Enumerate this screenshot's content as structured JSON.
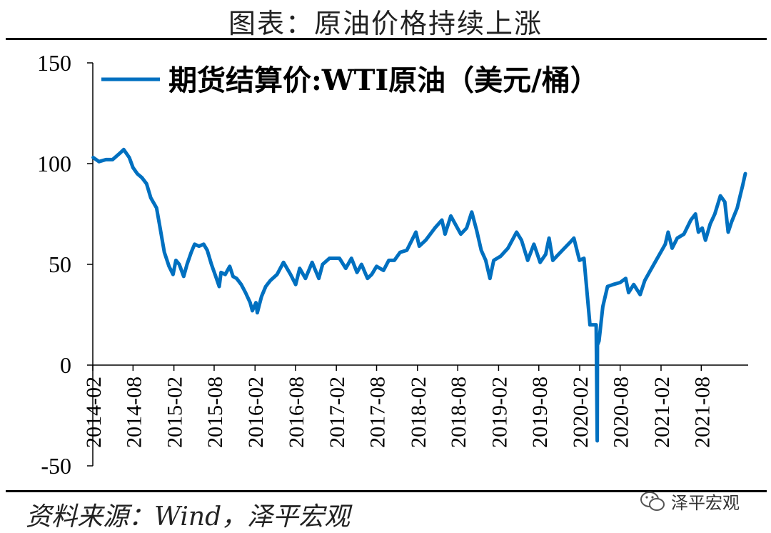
{
  "title": "图表：原油价格持续上涨",
  "source": "资料来源：Wind，泽平宏观",
  "watermark": "泽平宏观",
  "colors": {
    "line": "#0070C0",
    "axis": "#000000"
  },
  "icons": {
    "watermark": "wechat-icon"
  },
  "chart_data": {
    "type": "line",
    "title": "",
    "xlabel": "",
    "ylabel": "",
    "ylim": [
      -50,
      150
    ],
    "yticks": [
      -50,
      0,
      50,
      100,
      150
    ],
    "xticks": [
      "2014-02",
      "2014-08",
      "2015-02",
      "2015-08",
      "2016-02",
      "2016-08",
      "2017-02",
      "2017-08",
      "2018-02",
      "2018-08",
      "2019-02",
      "2019-08",
      "2020-02",
      "2020-08",
      "2021-02",
      "2021-08"
    ],
    "xrange": [
      "2014-02",
      "2022-02"
    ],
    "grid": false,
    "legend": {
      "position": "top-left"
    },
    "series": [
      {
        "name": "期货结算价:WTI原油（美元/桶）",
        "color": "#0070C0",
        "points": [
          [
            "2014-02-03",
            103
          ],
          [
            "2014-03-01",
            101
          ],
          [
            "2014-04-01",
            102
          ],
          [
            "2014-05-01",
            102
          ],
          [
            "2014-06-01",
            105
          ],
          [
            "2014-06-20",
            107
          ],
          [
            "2014-07-15",
            103
          ],
          [
            "2014-08-01",
            98
          ],
          [
            "2014-08-20",
            95
          ],
          [
            "2014-09-10",
            93
          ],
          [
            "2014-10-01",
            90
          ],
          [
            "2014-10-20",
            83
          ],
          [
            "2014-11-15",
            78
          ],
          [
            "2014-12-01",
            68
          ],
          [
            "2014-12-20",
            56
          ],
          [
            "2015-01-10",
            49
          ],
          [
            "2015-01-28",
            45
          ],
          [
            "2015-02-10",
            52
          ],
          [
            "2015-02-25",
            50
          ],
          [
            "2015-03-17",
            44
          ],
          [
            "2015-04-01",
            50
          ],
          [
            "2015-04-20",
            56
          ],
          [
            "2015-05-05",
            60
          ],
          [
            "2015-05-25",
            59
          ],
          [
            "2015-06-15",
            60
          ],
          [
            "2015-07-01",
            57
          ],
          [
            "2015-07-20",
            50
          ],
          [
            "2015-08-05",
            45
          ],
          [
            "2015-08-24",
            39
          ],
          [
            "2015-09-01",
            46
          ],
          [
            "2015-09-20",
            45
          ],
          [
            "2015-10-10",
            49
          ],
          [
            "2015-10-25",
            44
          ],
          [
            "2015-11-10",
            43
          ],
          [
            "2015-12-01",
            40
          ],
          [
            "2015-12-20",
            36
          ],
          [
            "2016-01-10",
            31
          ],
          [
            "2016-01-20",
            27
          ],
          [
            "2016-02-05",
            31
          ],
          [
            "2016-02-11",
            26
          ],
          [
            "2016-03-01",
            34
          ],
          [
            "2016-03-20",
            39
          ],
          [
            "2016-04-10",
            42
          ],
          [
            "2016-05-10",
            45
          ],
          [
            "2016-06-08",
            51
          ],
          [
            "2016-07-10",
            45
          ],
          [
            "2016-08-02",
            40
          ],
          [
            "2016-08-20",
            48
          ],
          [
            "2016-09-15",
            43
          ],
          [
            "2016-10-15",
            51
          ],
          [
            "2016-11-14",
            43
          ],
          [
            "2016-12-01",
            50
          ],
          [
            "2017-01-01",
            53
          ],
          [
            "2017-02-15",
            53
          ],
          [
            "2017-03-15",
            48
          ],
          [
            "2017-04-10",
            53
          ],
          [
            "2017-05-05",
            46
          ],
          [
            "2017-05-25",
            50
          ],
          [
            "2017-06-21",
            43
          ],
          [
            "2017-07-10",
            45
          ],
          [
            "2017-08-01",
            49
          ],
          [
            "2017-09-01",
            47
          ],
          [
            "2017-09-25",
            52
          ],
          [
            "2017-10-20",
            52
          ],
          [
            "2017-11-15",
            56
          ],
          [
            "2017-12-15",
            57
          ],
          [
            "2018-01-25",
            66
          ],
          [
            "2018-02-09",
            59
          ],
          [
            "2018-03-10",
            62
          ],
          [
            "2018-04-20",
            68
          ],
          [
            "2018-05-22",
            72
          ],
          [
            "2018-06-05",
            65
          ],
          [
            "2018-07-01",
            74
          ],
          [
            "2018-08-15",
            65
          ],
          [
            "2018-09-10",
            68
          ],
          [
            "2018-10-03",
            76
          ],
          [
            "2018-10-25",
            67
          ],
          [
            "2018-11-15",
            57
          ],
          [
            "2018-12-05",
            52
          ],
          [
            "2018-12-24",
            43
          ],
          [
            "2019-01-10",
            52
          ],
          [
            "2019-02-10",
            54
          ],
          [
            "2019-03-15",
            58
          ],
          [
            "2019-04-23",
            66
          ],
          [
            "2019-05-15",
            62
          ],
          [
            "2019-06-12",
            52
          ],
          [
            "2019-07-10",
            60
          ],
          [
            "2019-08-07",
            51
          ],
          [
            "2019-09-01",
            55
          ],
          [
            "2019-09-16",
            63
          ],
          [
            "2019-10-03",
            52
          ],
          [
            "2019-11-15",
            57
          ],
          [
            "2019-12-20",
            61
          ],
          [
            "2020-01-06",
            63
          ],
          [
            "2020-01-31",
            52
          ],
          [
            "2020-02-20",
            53
          ],
          [
            "2020-03-09",
            31
          ],
          [
            "2020-03-18",
            20
          ],
          [
            "2020-04-01",
            20
          ],
          [
            "2020-04-15",
            20
          ],
          [
            "2020-04-20",
            -37.6
          ],
          [
            "2020-04-21",
            10
          ],
          [
            "2020-04-28",
            12
          ],
          [
            "2020-05-15",
            29
          ],
          [
            "2020-06-05",
            39
          ],
          [
            "2020-07-01",
            40
          ],
          [
            "2020-08-01",
            41
          ],
          [
            "2020-08-26",
            43
          ],
          [
            "2020-09-08",
            36
          ],
          [
            "2020-10-01",
            40
          ],
          [
            "2020-10-30",
            35
          ],
          [
            "2020-11-20",
            42
          ],
          [
            "2020-12-10",
            46
          ],
          [
            "2021-01-10",
            52
          ],
          [
            "2021-02-20",
            60
          ],
          [
            "2021-03-05",
            66
          ],
          [
            "2021-03-23",
            58
          ],
          [
            "2021-04-15",
            63
          ],
          [
            "2021-05-15",
            65
          ],
          [
            "2021-06-15",
            72
          ],
          [
            "2021-07-06",
            75
          ],
          [
            "2021-07-19",
            66
          ],
          [
            "2021-08-05",
            68
          ],
          [
            "2021-08-20",
            62
          ],
          [
            "2021-09-10",
            70
          ],
          [
            "2021-10-01",
            75
          ],
          [
            "2021-10-26",
            84
          ],
          [
            "2021-11-15",
            81
          ],
          [
            "2021-11-30",
            66
          ],
          [
            "2021-12-15",
            71
          ],
          [
            "2022-01-10",
            78
          ],
          [
            "2022-01-25",
            85
          ],
          [
            "2022-02-03",
            89
          ],
          [
            "2022-02-11",
            93
          ],
          [
            "2022-02-15",
            95
          ]
        ]
      }
    ]
  }
}
